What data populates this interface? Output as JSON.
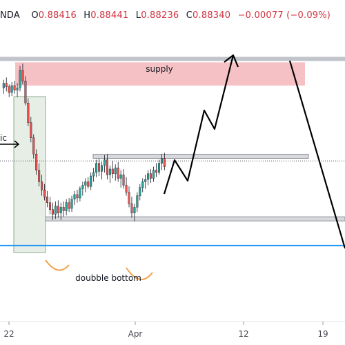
{
  "header": {
    "symbol_fragment": "NDA",
    "open_key": "O",
    "open": "0.88416",
    "high_key": "H",
    "high": "0.88441",
    "low_key": "L",
    "low": "0.88236",
    "close_key": "C",
    "close": "0.88340",
    "change": "−0.00077 (−0.09%)",
    "change_color": "#d1323f"
  },
  "annotations": {
    "supply_label": "supply",
    "double_bottom_label": "doubble bottom",
    "left_cut_label": "ic"
  },
  "colors": {
    "bull": "#26a69a",
    "bear": "#ef5350",
    "supply_zone": "#f4b6bb",
    "level_line": "#b2b5be",
    "current_price_line": "#2196f3",
    "drawing": "#000000",
    "arc": "#f0a24a"
  },
  "chart_data": {
    "type": "candlestick",
    "x_ticks": [
      "22",
      "Apr",
      "12",
      "19"
    ],
    "y_range": [
      0.8695,
      0.8945
    ],
    "levels": {
      "supply_zone": [
        0.8895,
        0.8915
      ],
      "upper_line": 0.8918,
      "resistance": 0.8834,
      "support": 0.878,
      "current_price": 0.883,
      "blue_line": 0.8757
    },
    "candles": [
      [
        0.8893,
        0.89,
        0.8888,
        0.8897
      ],
      [
        0.8897,
        0.8902,
        0.889,
        0.8894
      ],
      [
        0.8894,
        0.8896,
        0.8885,
        0.8889
      ],
      [
        0.8889,
        0.8898,
        0.8886,
        0.8895
      ],
      [
        0.8895,
        0.8899,
        0.8888,
        0.8891
      ],
      [
        0.8891,
        0.8897,
        0.8885,
        0.8893
      ],
      [
        0.8893,
        0.8912,
        0.889,
        0.8908
      ],
      [
        0.8908,
        0.8914,
        0.8896,
        0.8899
      ],
      [
        0.8899,
        0.8903,
        0.8878,
        0.888
      ],
      [
        0.888,
        0.8884,
        0.886,
        0.8863
      ],
      [
        0.8863,
        0.8868,
        0.8846,
        0.885
      ],
      [
        0.885,
        0.8853,
        0.8832,
        0.8836
      ],
      [
        0.8836,
        0.884,
        0.8818,
        0.8822
      ],
      [
        0.8822,
        0.8828,
        0.8808,
        0.8812
      ],
      [
        0.8812,
        0.8818,
        0.88,
        0.8805
      ],
      [
        0.8805,
        0.881,
        0.8796,
        0.8799
      ],
      [
        0.8799,
        0.8804,
        0.879,
        0.8794
      ],
      [
        0.8794,
        0.8799,
        0.8784,
        0.8788
      ],
      [
        0.8788,
        0.8794,
        0.8779,
        0.8784
      ],
      [
        0.8784,
        0.8795,
        0.878,
        0.8791
      ],
      [
        0.8791,
        0.8796,
        0.8781,
        0.8785
      ],
      [
        0.8785,
        0.8794,
        0.8779,
        0.879
      ],
      [
        0.879,
        0.8795,
        0.8782,
        0.8787
      ],
      [
        0.8787,
        0.8797,
        0.8783,
        0.8794
      ],
      [
        0.8794,
        0.8798,
        0.8786,
        0.8789
      ],
      [
        0.8789,
        0.88,
        0.8786,
        0.8797
      ],
      [
        0.8797,
        0.8804,
        0.8792,
        0.8801
      ],
      [
        0.8801,
        0.8805,
        0.8794,
        0.8798
      ],
      [
        0.8798,
        0.8808,
        0.8795,
        0.8806
      ],
      [
        0.8806,
        0.8812,
        0.88,
        0.8809
      ],
      [
        0.8809,
        0.8815,
        0.8803,
        0.8812
      ],
      [
        0.8812,
        0.8816,
        0.8806,
        0.8808
      ],
      [
        0.8808,
        0.882,
        0.8805,
        0.8817
      ],
      [
        0.8817,
        0.8824,
        0.8812,
        0.882
      ],
      [
        0.882,
        0.8831,
        0.8816,
        0.8828
      ],
      [
        0.8828,
        0.8832,
        0.8817,
        0.8821
      ],
      [
        0.8821,
        0.8829,
        0.8814,
        0.8826
      ],
      [
        0.8826,
        0.8835,
        0.882,
        0.8831
      ],
      [
        0.8831,
        0.8836,
        0.8814,
        0.8818
      ],
      [
        0.8818,
        0.8826,
        0.8811,
        0.8823
      ],
      [
        0.8823,
        0.883,
        0.8815,
        0.8819
      ],
      [
        0.8819,
        0.8827,
        0.8813,
        0.8824
      ],
      [
        0.8824,
        0.8829,
        0.8812,
        0.8815
      ],
      [
        0.8815,
        0.8822,
        0.8807,
        0.8818
      ],
      [
        0.8818,
        0.8823,
        0.8806,
        0.8809
      ],
      [
        0.8809,
        0.8816,
        0.88,
        0.8803
      ],
      [
        0.8803,
        0.8808,
        0.879,
        0.8793
      ],
      [
        0.8793,
        0.8799,
        0.8781,
        0.8785
      ],
      [
        0.8785,
        0.8793,
        0.8778,
        0.879
      ],
      [
        0.879,
        0.8803,
        0.8786,
        0.88
      ],
      [
        0.88,
        0.881,
        0.8796,
        0.8807
      ],
      [
        0.8807,
        0.8815,
        0.8803,
        0.8812
      ],
      [
        0.8812,
        0.8818,
        0.8806,
        0.8814
      ],
      [
        0.8814,
        0.8822,
        0.8809,
        0.8819
      ],
      [
        0.8819,
        0.8823,
        0.8811,
        0.8815
      ],
      [
        0.8815,
        0.8825,
        0.8812,
        0.8822
      ],
      [
        0.8822,
        0.8828,
        0.8816,
        0.882
      ],
      [
        0.882,
        0.8831,
        0.8818,
        0.8828
      ],
      [
        0.8828,
        0.8836,
        0.8822,
        0.8832
      ],
      [
        0.8832,
        0.8837,
        0.8822,
        0.8825
      ]
    ]
  }
}
